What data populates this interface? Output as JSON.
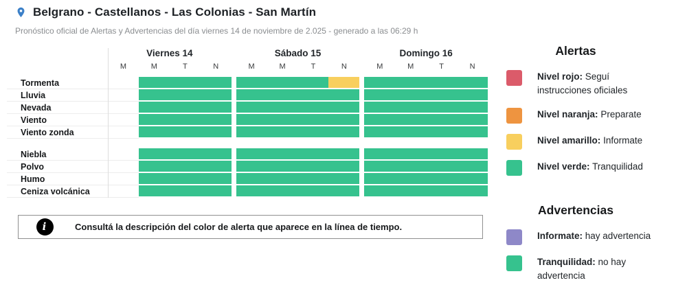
{
  "header": {
    "title": "Belgrano - Castellanos - Las Colonias - San Martín",
    "subtitle": "Pronóstico oficial de Alertas y Advertencias del día viernes 14 de noviembre de 2.025 - generado a las 06:29 h"
  },
  "colors": {
    "green": "#36c28e",
    "yellow": "#f8cf5e",
    "red": "#db5b6a",
    "orange": "#ee9440",
    "purple": "#8e88c8",
    "pin_blue": "#3c80c8",
    "none": "transparent"
  },
  "timeline": {
    "days": [
      {
        "label": "Viernes 14",
        "periods": [
          "M",
          "M",
          "T",
          "N"
        ]
      },
      {
        "label": "Sábado 15",
        "periods": [
          "M",
          "M",
          "T",
          "N"
        ]
      },
      {
        "label": "Domingo 16",
        "periods": [
          "M",
          "M",
          "T",
          "N"
        ]
      }
    ],
    "rows": [
      {
        "label": "Tormenta",
        "gap_before": false,
        "cells": [
          [
            "none",
            "green",
            "green",
            "green"
          ],
          [
            "green",
            "green",
            "green",
            "yellow"
          ],
          [
            "green",
            "green",
            "green",
            "green"
          ]
        ]
      },
      {
        "label": "Lluvia",
        "gap_before": false,
        "cells": [
          [
            "none",
            "green",
            "green",
            "green"
          ],
          [
            "green",
            "green",
            "green",
            "green"
          ],
          [
            "green",
            "green",
            "green",
            "green"
          ]
        ]
      },
      {
        "label": "Nevada",
        "gap_before": false,
        "cells": [
          [
            "none",
            "green",
            "green",
            "green"
          ],
          [
            "green",
            "green",
            "green",
            "green"
          ],
          [
            "green",
            "green",
            "green",
            "green"
          ]
        ]
      },
      {
        "label": "Viento",
        "gap_before": false,
        "cells": [
          [
            "none",
            "green",
            "green",
            "green"
          ],
          [
            "green",
            "green",
            "green",
            "green"
          ],
          [
            "green",
            "green",
            "green",
            "green"
          ]
        ]
      },
      {
        "label": "Viento zonda",
        "gap_before": false,
        "cells": [
          [
            "none",
            "green",
            "green",
            "green"
          ],
          [
            "green",
            "green",
            "green",
            "green"
          ],
          [
            "green",
            "green",
            "green",
            "green"
          ]
        ]
      },
      {
        "label": "Niebla",
        "gap_before": true,
        "cells": [
          [
            "none",
            "green",
            "green",
            "green"
          ],
          [
            "green",
            "green",
            "green",
            "green"
          ],
          [
            "green",
            "green",
            "green",
            "green"
          ]
        ]
      },
      {
        "label": "Polvo",
        "gap_before": false,
        "cells": [
          [
            "none",
            "green",
            "green",
            "green"
          ],
          [
            "green",
            "green",
            "green",
            "green"
          ],
          [
            "green",
            "green",
            "green",
            "green"
          ]
        ]
      },
      {
        "label": "Humo",
        "gap_before": false,
        "cells": [
          [
            "none",
            "green",
            "green",
            "green"
          ],
          [
            "green",
            "green",
            "green",
            "green"
          ],
          [
            "green",
            "green",
            "green",
            "green"
          ]
        ]
      },
      {
        "label": "Ceniza volcánica",
        "gap_before": false,
        "cells": [
          [
            "none",
            "green",
            "green",
            "green"
          ],
          [
            "green",
            "green",
            "green",
            "green"
          ],
          [
            "green",
            "green",
            "green",
            "green"
          ]
        ]
      }
    ]
  },
  "info_box": {
    "icon": "info-icon",
    "icon_glyph": "i",
    "text": "Consultá la descripción del color de alerta que aparece en la línea de tiempo."
  },
  "alerts_legend": {
    "title": "Alertas",
    "items": [
      {
        "color_key": "red",
        "label": "Nivel rojo",
        "description": "Seguí instrucciones oficiales"
      },
      {
        "color_key": "orange",
        "label": "Nivel naranja",
        "description": "Preparate"
      },
      {
        "color_key": "yellow",
        "label": "Nivel amarillo",
        "description": "Informate"
      },
      {
        "color_key": "green",
        "label": "Nivel verde",
        "description": "Tranquilidad"
      }
    ]
  },
  "warnings_legend": {
    "title": "Advertencias",
    "items": [
      {
        "color_key": "purple",
        "label": "Informate",
        "description": "hay advertencia"
      },
      {
        "color_key": "green",
        "label": "Tranquilidad",
        "description": "no hay advertencia"
      }
    ]
  }
}
